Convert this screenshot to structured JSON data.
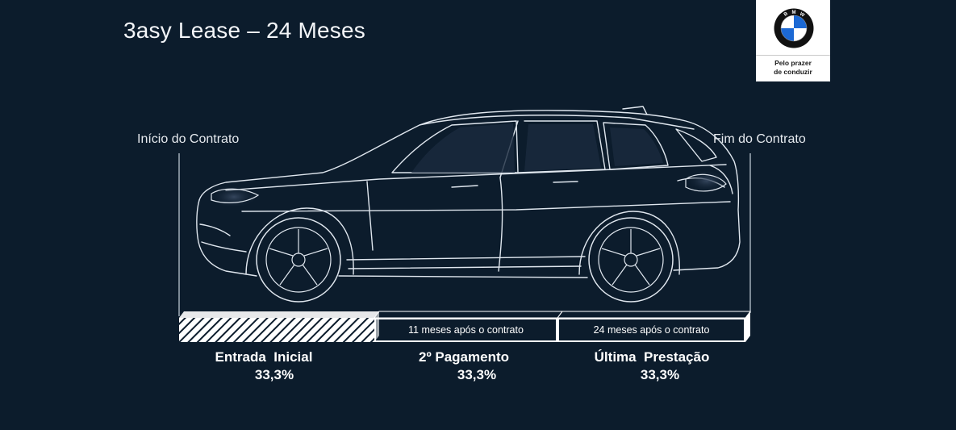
{
  "title": "3asy Lease – 24 Meses",
  "brand": {
    "logo_letters": "BMW",
    "tagline_line1": "Pelo prazer",
    "tagline_line2": "de conduzir",
    "colors": {
      "blue": "#1c69d4",
      "black": "#111111",
      "white": "#ffffff"
    }
  },
  "timeline": {
    "start_label": "Início do Contrato",
    "end_label": "Fim do Contrato",
    "segments": [
      {
        "caption": "",
        "name": "Entrada  Inicial",
        "value": "33,3%"
      },
      {
        "caption": "11 meses após o contrato",
        "name": "2º Pagamento",
        "value": "33,3%"
      },
      {
        "caption": "24 meses após o contrato",
        "name": "Última  Prestação",
        "value": "33,3%"
      }
    ]
  },
  "colors": {
    "background": "#0c1c2c",
    "line": "#dfe6ee"
  }
}
